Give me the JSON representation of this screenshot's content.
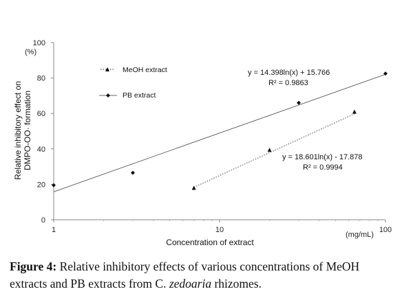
{
  "chart_data": {
    "type": "scatter",
    "title": "",
    "xlabel": "Concentration of extract",
    "xunit": "(mg/mL)",
    "ylabel": [
      "Relative inhibitory effect on",
      "DMPO-OO· formation"
    ],
    "yunit": "(%)",
    "xscale": "log",
    "xlim": [
      1,
      100
    ],
    "ylim": [
      0,
      100
    ],
    "x_ticks": [
      1,
      10,
      100
    ],
    "x_tick_labels": [
      "1",
      "10",
      "100"
    ],
    "y_ticks": [
      0,
      20,
      40,
      60,
      80,
      100
    ],
    "y_tick_labels": [
      "0",
      "20",
      "40",
      "60",
      "80",
      "100"
    ],
    "grid": false,
    "legend_position": "top-left",
    "series": [
      {
        "name": "MeOH extract",
        "marker": "triangle",
        "line": "dotted",
        "x": [
          7,
          20,
          65
        ],
        "y": [
          18,
          39.5,
          61
        ],
        "fit": {
          "a": 18.601,
          "b": -17.878,
          "from": 7,
          "to": 65
        },
        "equation": "y = 18.601ln(x) - 17.878",
        "r2": "R² = 0.9994"
      },
      {
        "name": "PB extract",
        "marker": "diamond",
        "line": "solid",
        "x": [
          1,
          3,
          30,
          100
        ],
        "y": [
          19.5,
          26.5,
          66,
          82.5
        ],
        "fit": {
          "a": 14.398,
          "b": 15.766,
          "from": 1,
          "to": 100
        },
        "equation": "y = 14.398ln(x) + 15.766",
        "r2": "R² = 0.9863"
      }
    ]
  },
  "caption": {
    "label": "Figure 4:",
    "text_before": " Relative inhibitory effects of various concentrations of MeOH extracts and PB extracts from C. ",
    "italic": "zedoaria",
    "text_after": " rhizomes."
  }
}
